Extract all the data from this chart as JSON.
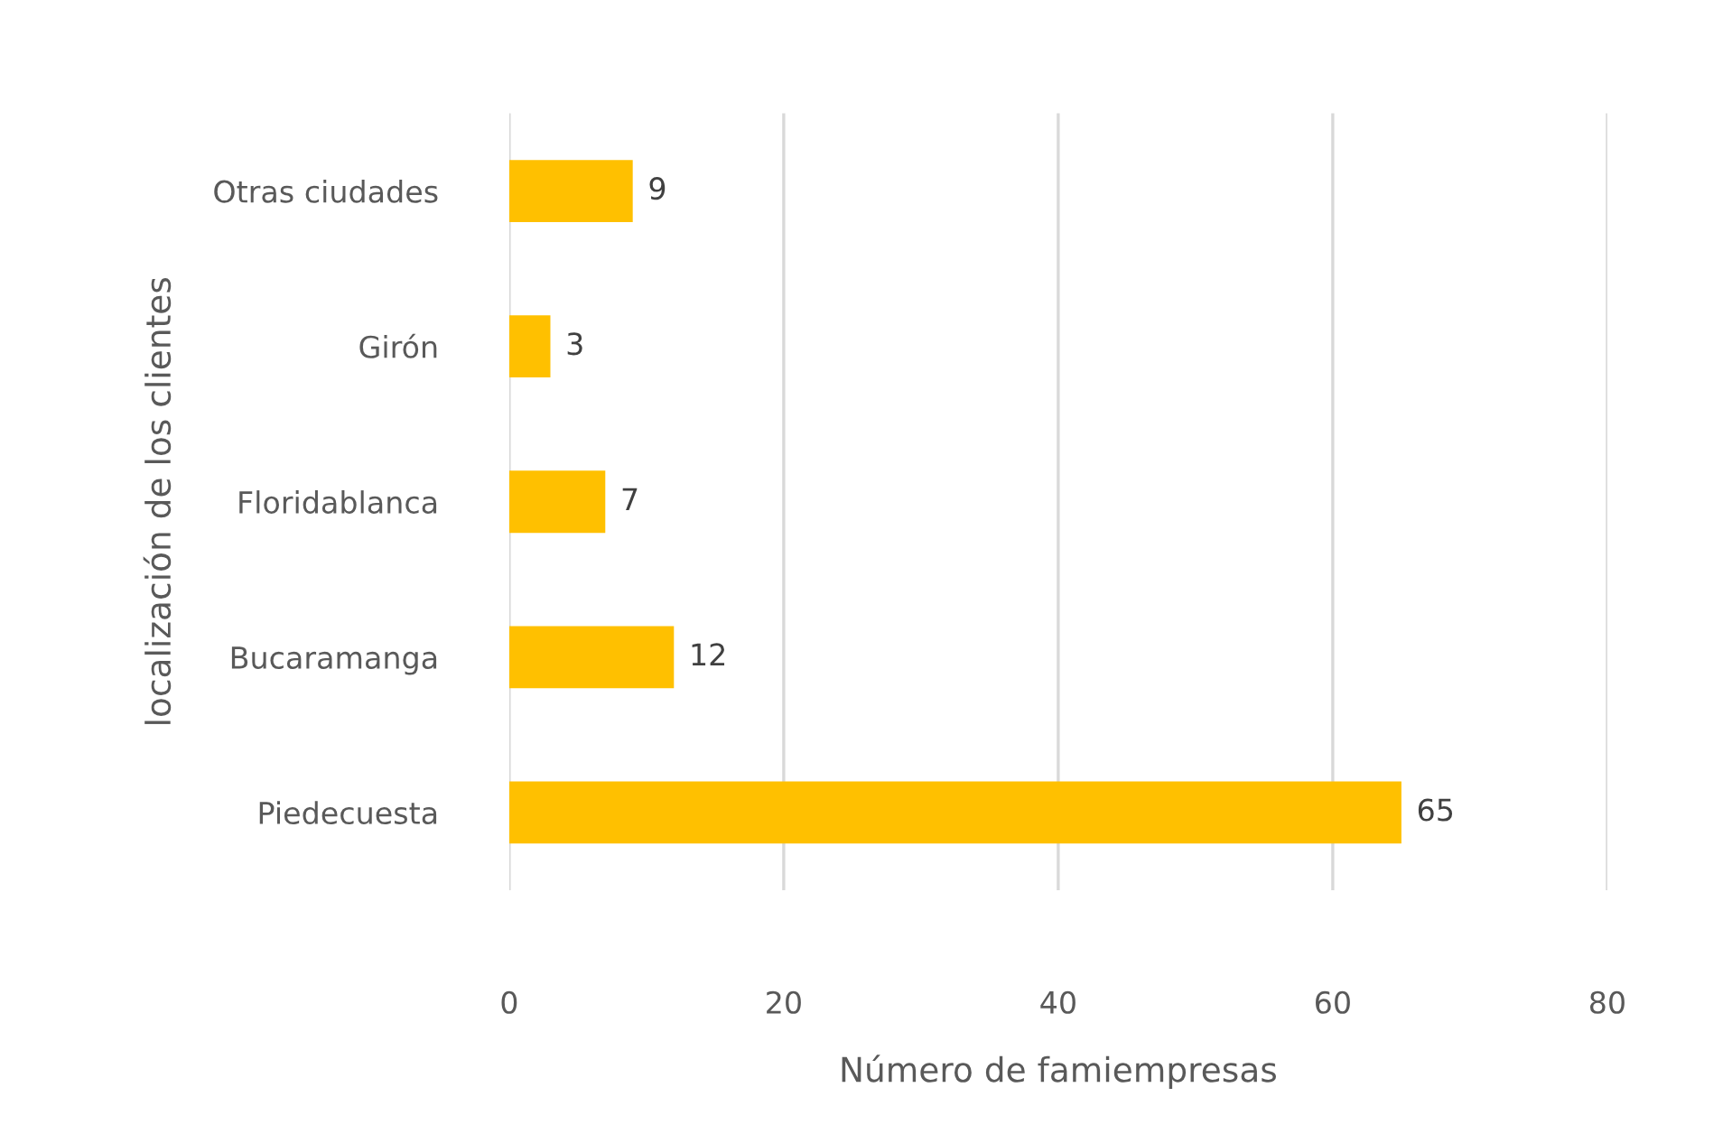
{
  "chart_data": {
    "type": "bar",
    "orientation": "horizontal",
    "xlabel": "Número de famiempresas",
    "ylabel": "localización de los clientes",
    "categories": [
      "Otras ciudades",
      "Girón",
      "Floridablanca",
      "Bucaramanga",
      "Piedecuesta"
    ],
    "values": [
      9,
      3,
      7,
      12,
      65
    ],
    "color": "#ffc000",
    "xlim": [
      0,
      80
    ],
    "xticks": [
      0,
      20,
      40,
      60,
      80
    ],
    "grid": "x",
    "data_labels": true
  }
}
